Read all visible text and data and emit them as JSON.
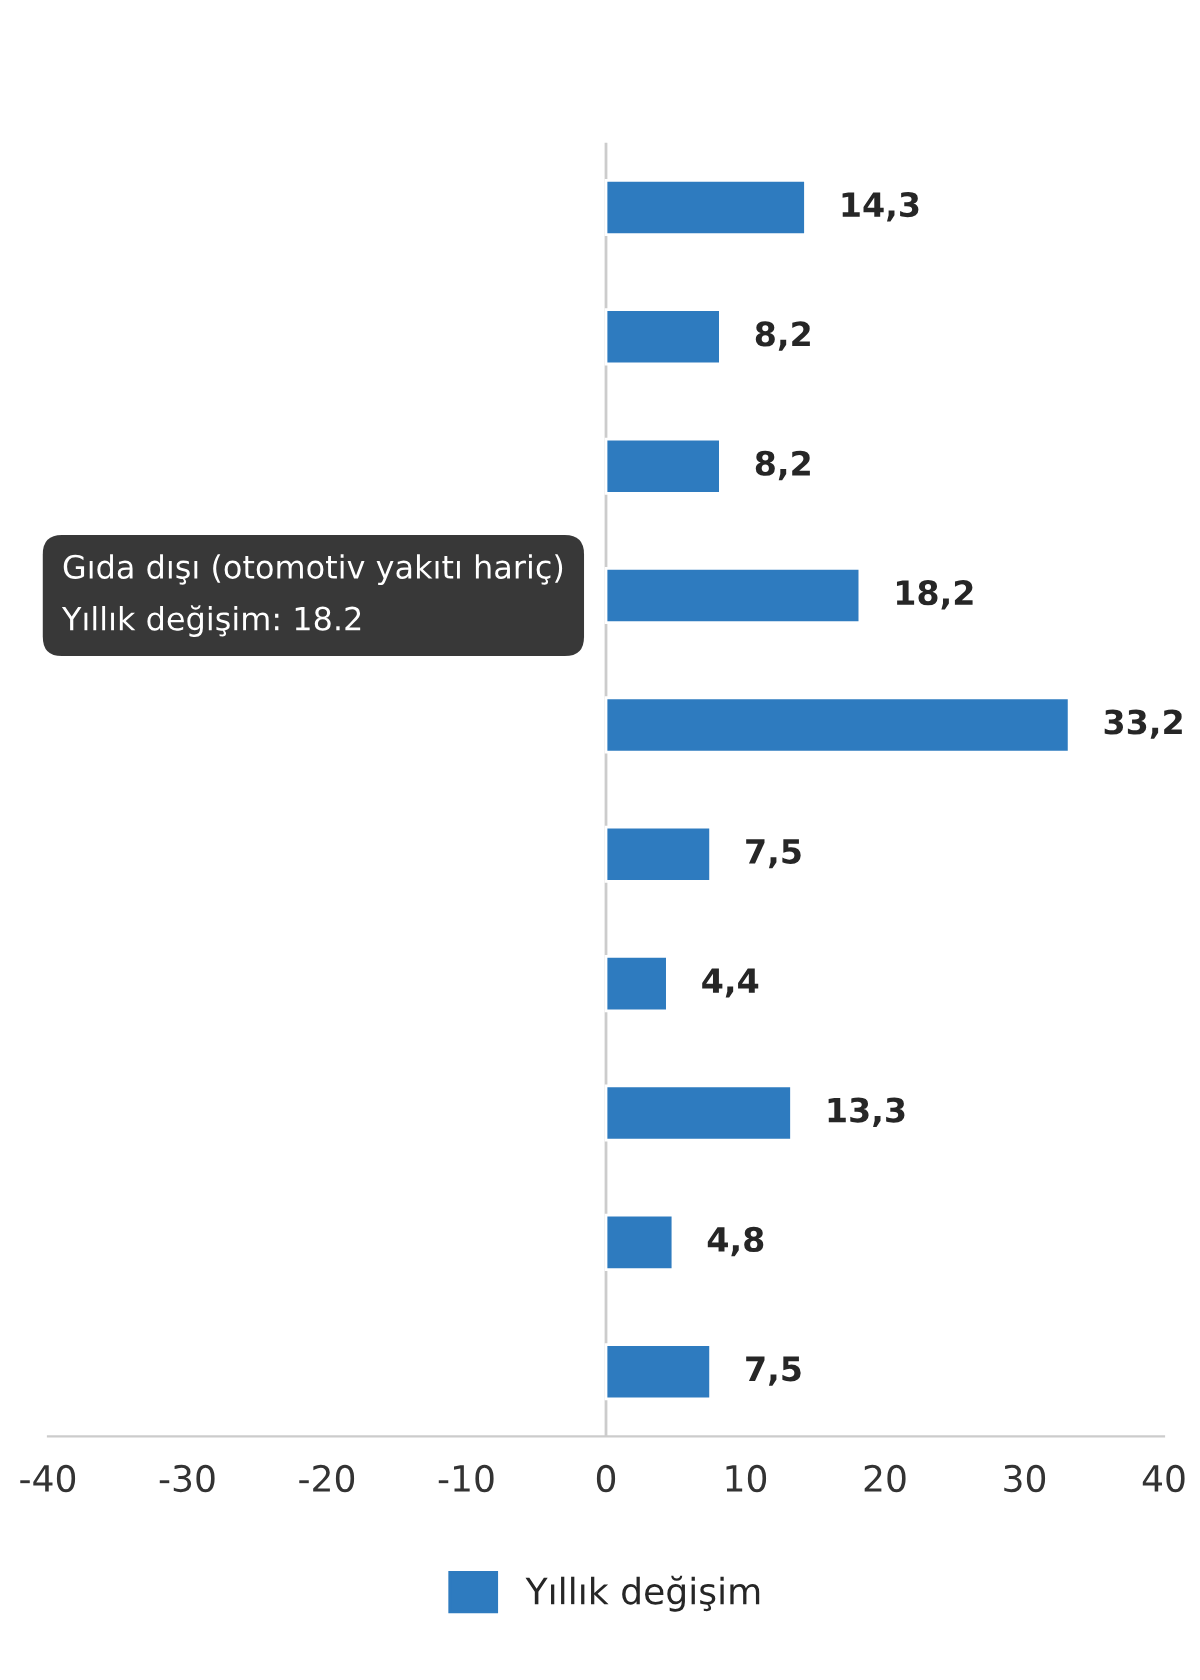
{
  "chart_data": {
    "type": "bar",
    "orientation": "horizontal",
    "categories": [
      null,
      null,
      null,
      null,
      null,
      null,
      null,
      null,
      null,
      null
    ],
    "series": [
      {
        "name": "Yıllık değişim",
        "color": "#2e7bbf",
        "values": [
          14.3,
          8.2,
          8.2,
          18.2,
          33.2,
          7.5,
          4.4,
          13.3,
          4.8,
          7.5
        ],
        "value_labels": [
          "14,3",
          "8,2",
          "8,2",
          "18,2",
          "33,2",
          "7,5",
          "4,4",
          "13,3",
          "4,8",
          "7,5"
        ]
      }
    ],
    "xlim": [
      -40,
      40
    ],
    "xticks": [
      -40,
      -30,
      -20,
      -10,
      0,
      10,
      20,
      30,
      40
    ],
    "grid": false,
    "legend": "bottom",
    "ref_lines": [
      {
        "axis": "x",
        "value": 0,
        "color": "#cccccc"
      }
    ],
    "annotations": [
      "Gıda dışı (otomotiv yakıtı hariç)",
      "Yıllık değişim: 18.2"
    ]
  }
}
